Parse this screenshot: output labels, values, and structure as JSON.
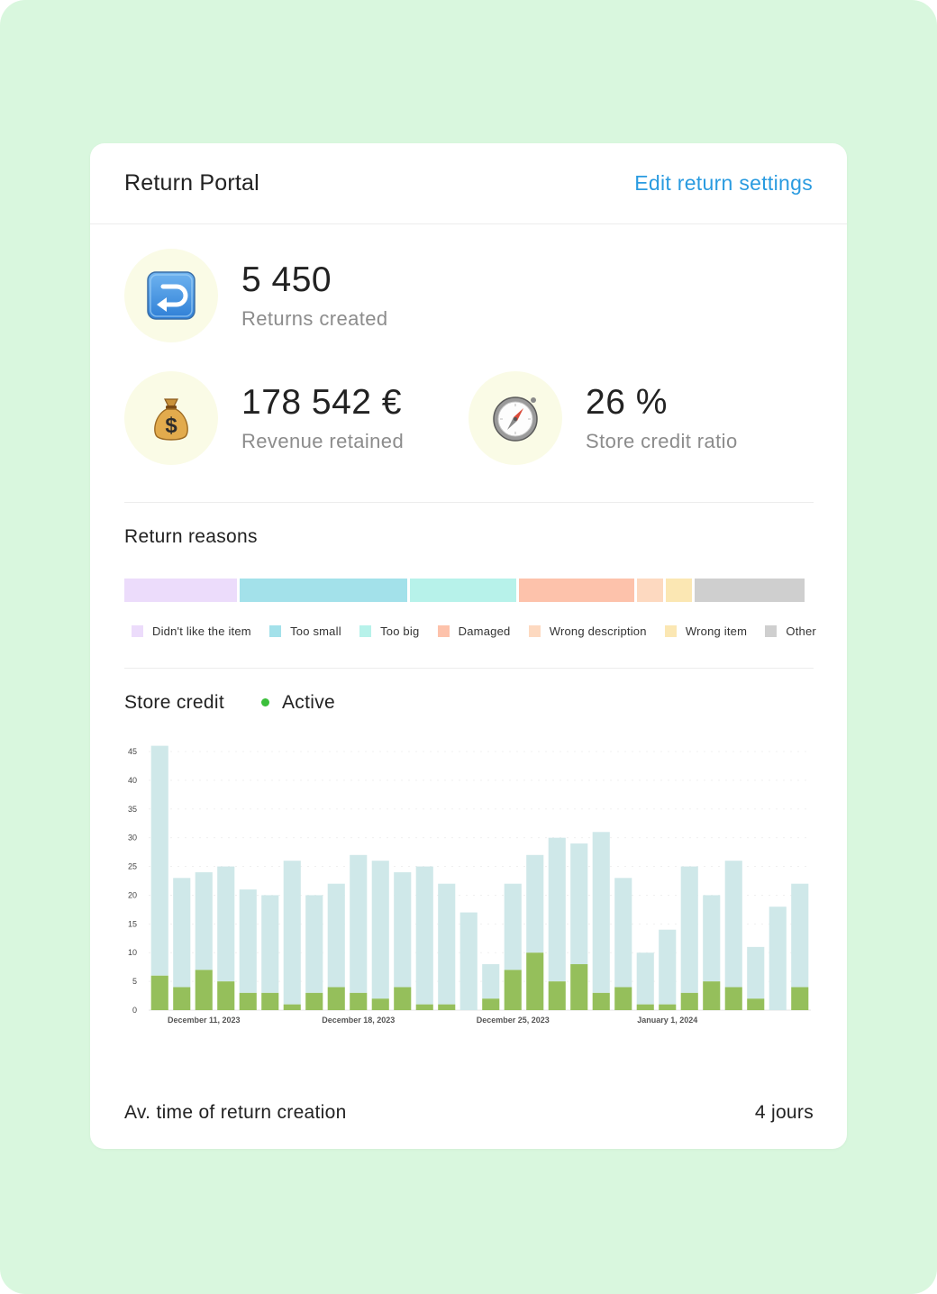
{
  "header": {
    "title": "Return Portal",
    "edit_link": "Edit return settings"
  },
  "stats": [
    {
      "icon": "return-arrow-icon",
      "value": "5 450",
      "label": "Returns created"
    },
    {
      "icon": "money-bag-icon",
      "value": "178 542 €",
      "label": "Revenue retained"
    },
    {
      "icon": "compass-icon",
      "value": "26 %",
      "label": "Store credit ratio"
    }
  ],
  "return_reasons": {
    "title": "Return reasons",
    "segments": [
      {
        "label": "Didn't like the item",
        "color": "#ecdcfb",
        "share": 0.168
      },
      {
        "label": "Too small",
        "color": "#a3e1ea",
        "share": 0.248
      },
      {
        "label": "Too big",
        "color": "#b7f2ea",
        "share": 0.158
      },
      {
        "label": "Damaged",
        "color": "#fdc2ab",
        "share": 0.172
      },
      {
        "label": "Wrong description",
        "color": "#fdd9c0",
        "share": 0.039
      },
      {
        "label": "Wrong item",
        "color": "#fbe7b3",
        "share": 0.039
      },
      {
        "label": "Other",
        "color": "#cfcfcf",
        "share": 0.163
      }
    ]
  },
  "store_credit": {
    "title": "Store credit",
    "status": "Active",
    "status_color": "#3bbf3b"
  },
  "chart_data": {
    "type": "bar",
    "stacked": true,
    "ylim": [
      0,
      45
    ],
    "yticks": [
      0,
      5,
      10,
      15,
      20,
      25,
      30,
      35,
      40,
      45
    ],
    "x_tick_labels": [
      {
        "index": 2,
        "label": "December 11, 2023"
      },
      {
        "index": 9,
        "label": "December 18, 2023"
      },
      {
        "index": 16,
        "label": "December 25, 2023"
      },
      {
        "index": 23,
        "label": "January 1, 2024"
      }
    ],
    "series": [
      {
        "color": "#95bf5b",
        "values": [
          6,
          4,
          7,
          5,
          3,
          3,
          1,
          3,
          4,
          3,
          2,
          4,
          1,
          1,
          0,
          2,
          7,
          10,
          5,
          8,
          3,
          4,
          1,
          1,
          3,
          5,
          4,
          2,
          0,
          4
        ]
      },
      {
        "color": "#cfe8e9",
        "values": [
          40,
          19,
          17,
          20,
          18,
          17,
          25,
          17,
          18,
          24,
          24,
          20,
          24,
          21,
          17,
          6,
          15,
          17,
          25,
          21,
          28,
          19,
          9,
          13,
          22,
          15,
          22,
          9,
          18,
          18
        ]
      }
    ],
    "totals": [
      46,
      23,
      24,
      25,
      21,
      20,
      26,
      20,
      22,
      27,
      26,
      24,
      25,
      22,
      17,
      8,
      22,
      27,
      30,
      29,
      31,
      23,
      10,
      14,
      25,
      20,
      26,
      11,
      18,
      22
    ]
  },
  "footer": {
    "label": "Av. time of return creation",
    "value": "4 jours"
  }
}
